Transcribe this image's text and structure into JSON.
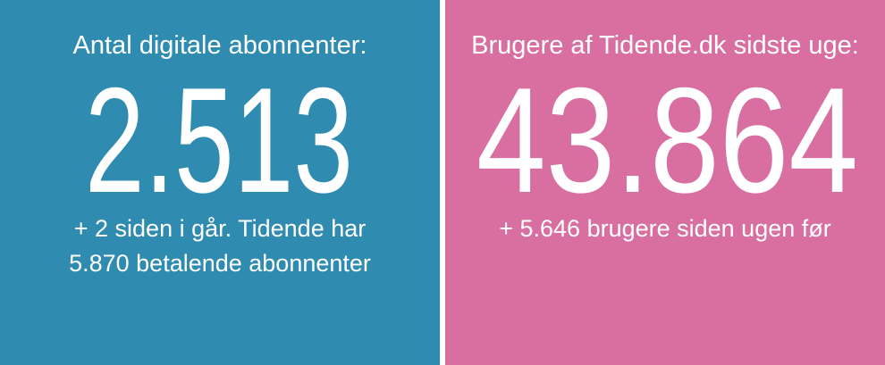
{
  "panels": [
    {
      "title": "Antal digitale abonnenter:",
      "number": "2.513",
      "subtitle": [
        "+ 2 siden i går. Tidende har",
        "5.870 betalende abonnenter"
      ]
    },
    {
      "title": "Brugere af Tidende.dk sidste uge:",
      "number": "43.864",
      "subtitle": [
        "+ 5.646 brugere siden ugen før"
      ]
    }
  ]
}
